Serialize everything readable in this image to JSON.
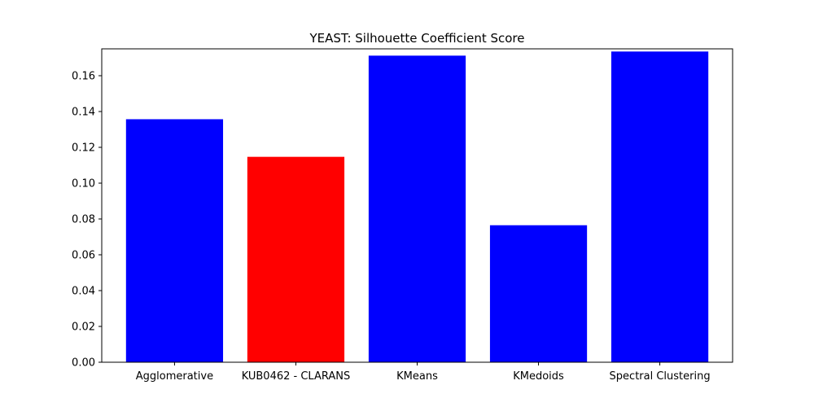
{
  "chart_data": {
    "type": "bar",
    "title": "YEAST: Silhouette Coefficient Score",
    "xlabel": "",
    "ylabel": "",
    "categories": [
      "Agglomerative",
      "KUB0462 - CLARANS",
      "KMeans",
      "KMedoids",
      "Spectral Clustering"
    ],
    "values": [
      0.1357,
      0.1147,
      0.1712,
      0.0765,
      0.1735
    ],
    "bar_colors": [
      "#0000ff",
      "#ff0000",
      "#0000ff",
      "#0000ff",
      "#0000ff"
    ],
    "ylim": [
      0,
      0.175
    ],
    "yticks": [
      0.0,
      0.02,
      0.04,
      0.06,
      0.08,
      0.1,
      0.12,
      0.14,
      0.16
    ],
    "ytick_labels": [
      "0.00",
      "0.02",
      "0.04",
      "0.06",
      "0.08",
      "0.10",
      "0.12",
      "0.14",
      "0.16"
    ],
    "grid": false,
    "legend": "none"
  }
}
